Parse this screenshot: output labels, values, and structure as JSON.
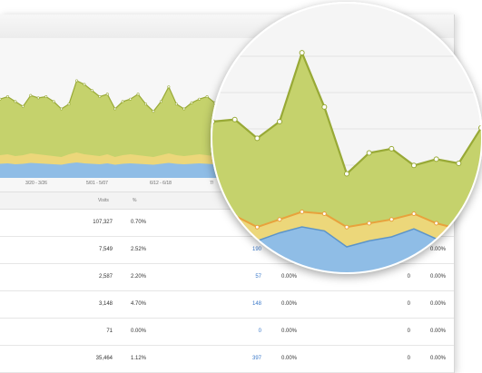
{
  "chart_data": {
    "type": "area",
    "x_tick_labels": [
      "3/20 - 3/26",
      "5/01 - 5/07",
      "6/12 - 6/18",
      "7/"
    ],
    "green_series": [
      48,
      50,
      46,
      42,
      51,
      49,
      50,
      46,
      40,
      44,
      63,
      60,
      55,
      50,
      52,
      40,
      46,
      48,
      52,
      44,
      38,
      46,
      58,
      44,
      40,
      45,
      48,
      50,
      45,
      47
    ],
    "zoomed_green": [
      60,
      61,
      52,
      60,
      93,
      67,
      35,
      45,
      47,
      39,
      42,
      40,
      57
    ],
    "zoomed_yellow": [
      13,
      14,
      8,
      12,
      16,
      15,
      8,
      10,
      12,
      15,
      10,
      7,
      9
    ],
    "zoomed_blue": [
      9,
      10,
      3,
      7,
      10,
      8,
      0,
      3,
      5,
      9,
      4,
      0,
      2
    ],
    "colors": {
      "green": "#c5d26c",
      "green_line": "#98a936",
      "yellow": "#ecd77a",
      "orange": "#e8a23c",
      "blue": "#8fbde6",
      "blue_line": "#5c94c9"
    }
  },
  "table": {
    "headers": {
      "visits": "Visits",
      "percent": "%"
    },
    "rows": [
      {
        "visits": "107,327",
        "percent": "0.70%",
        "goal": "",
        "goal_pct": "",
        "right_val": "",
        "right_pct": ""
      },
      {
        "visits": "7,549",
        "percent": "2.52%",
        "goal": "190",
        "goal_pct": "",
        "right_val": "",
        "right_pct": "0.00%"
      },
      {
        "visits": "2,587",
        "percent": "2.20%",
        "goal": "57",
        "goal_pct": "0.00%",
        "right_val": "0",
        "right_pct": "0.00%"
      },
      {
        "visits": "3,148",
        "percent": "4.70%",
        "goal": "148",
        "goal_pct": "0.00%",
        "right_val": "0",
        "right_pct": "0.00%"
      },
      {
        "visits": "71",
        "percent": "0.00%",
        "goal": "0",
        "goal_pct": "0.00%",
        "right_val": "0",
        "right_pct": "0.00%"
      },
      {
        "visits": "35,464",
        "percent": "1.12%",
        "goal": "397",
        "goal_pct": "0.00%",
        "right_val": "0",
        "right_pct": "0.00%"
      }
    ]
  }
}
